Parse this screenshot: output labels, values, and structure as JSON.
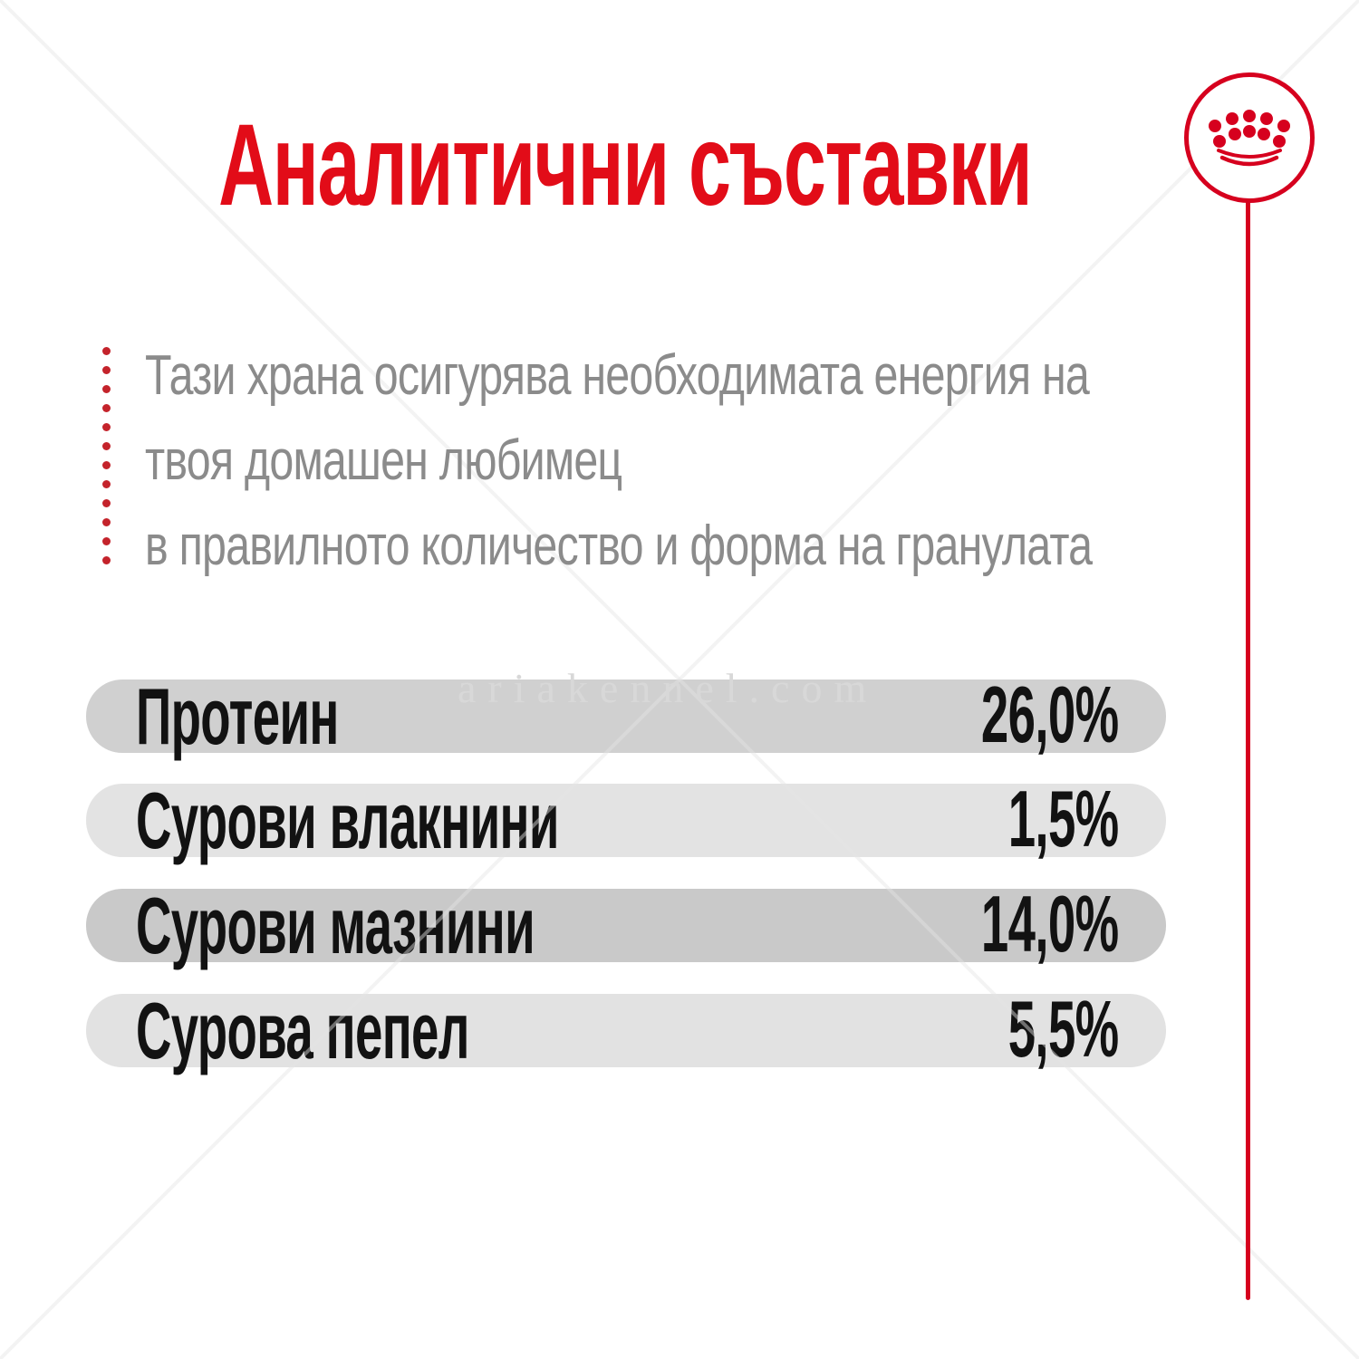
{
  "header": {
    "title": "Аналитични съставки"
  },
  "brand": {
    "logo": "royal-canin-crown"
  },
  "description": {
    "lines": [
      "Тази храна осигурява необходимата енергия на",
      "твоя домашен любимец",
      "в правилното количество и форма на гранулата"
    ]
  },
  "table": {
    "rows": [
      {
        "label": "Протеин",
        "value": "26,0%",
        "bg": "#d0d0d0"
      },
      {
        "label": "Сурови влакнини",
        "value": "1,5%",
        "bg": "#e3e3e3"
      },
      {
        "label": "Сурови мазнини",
        "value": "14,0%",
        "bg": "#c9c9c9"
      },
      {
        "label": "Сурова пепел",
        "value": "5,5%",
        "bg": "#e2e2e2"
      }
    ]
  },
  "watermark": {
    "text": "ariakennel.com"
  },
  "decor": {
    "dotted_line_dot_count": 12
  },
  "colors": {
    "title_red": "#e20c18",
    "brand_red": "#d6001e",
    "dot_red": "#c4232b",
    "text_gray": "#8b8b8b",
    "row_text": "#121212",
    "watermark_gray": "#d8d8d8"
  }
}
